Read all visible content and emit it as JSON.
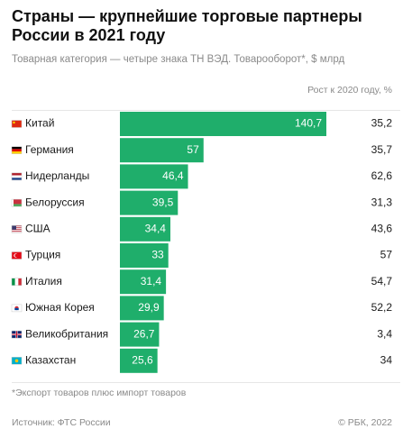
{
  "title": "Страны — крупнейшие торговые партнеры России в 2021 году",
  "subtitle": "Товарная категория — четыре знака ТН ВЭД. Товарооборот*, $ млрд",
  "growth_header": "Рост к 2020 году, %",
  "footnote": "*Экспорт товаров плюс импорт товаров",
  "source": "Источник: ФТС России",
  "copyright": "© РБК, 2022",
  "colors": {
    "bar": "#1fae6b",
    "bar_label": "#ffffff",
    "text": "#1a1a1a"
  },
  "chart_data": {
    "type": "bar",
    "orientation": "horizontal",
    "categories": [
      "Китай",
      "Германия",
      "Нидерланды",
      "Белоруссия",
      "США",
      "Турция",
      "Италия",
      "Южная Корея",
      "Великобритания",
      "Казахстан"
    ],
    "flags": [
      "cn",
      "de",
      "nl",
      "by",
      "us",
      "tr",
      "it",
      "kr",
      "gb",
      "kz"
    ],
    "series": [
      {
        "values": [
          140.7,
          57,
          46.4,
          39.5,
          34.4,
          33,
          31.4,
          29.9,
          26.7,
          25.6
        ],
        "labels": [
          "140,7",
          "57",
          "46,4",
          "39,5",
          "34,4",
          "33",
          "31,4",
          "29,9",
          "26,7",
          "25,6"
        ]
      }
    ],
    "growth_pct": [
      "35,2",
      "35,7",
      "62,6",
      "31,3",
      "43,6",
      "57",
      "54,7",
      "52,2",
      "3,4",
      "34"
    ]
  }
}
